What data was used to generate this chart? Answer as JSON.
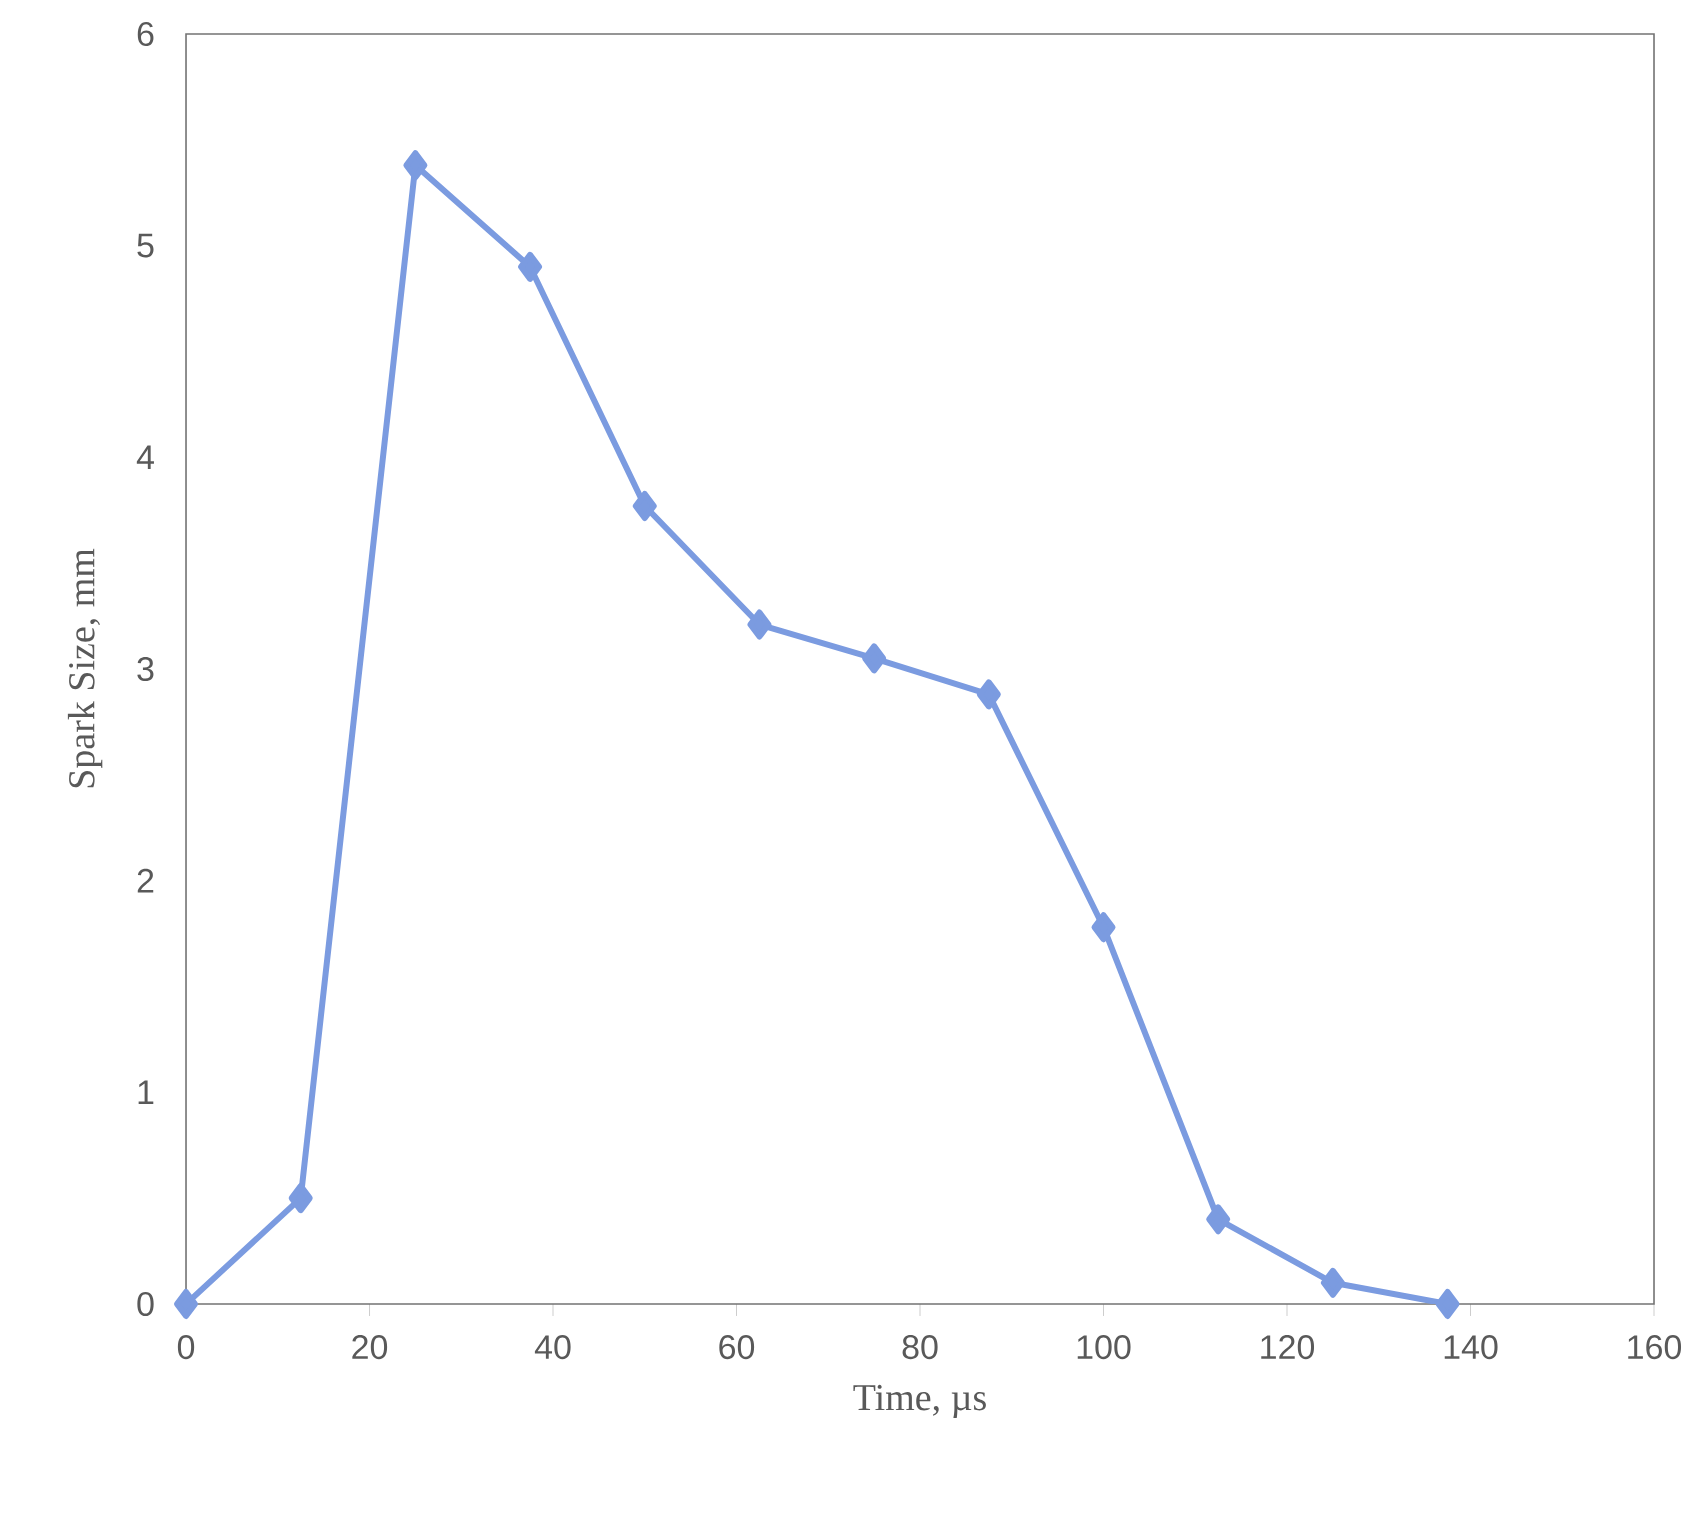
{
  "chart_data": {
    "type": "line",
    "xlabel": "Time, µs",
    "ylabel": "Spark Size, mm",
    "x": [
      0,
      12.5,
      25,
      37.5,
      50,
      62.5,
      75,
      87.5,
      100,
      112.5,
      125,
      137.5
    ],
    "series": [
      {
        "color": "#7b9be0",
        "values": [
          0,
          0.5,
          5.38,
          4.9,
          3.77,
          3.21,
          3.05,
          2.88,
          1.78,
          0.4,
          0.1,
          0
        ]
      }
    ],
    "xlim": [
      0,
      160
    ],
    "ylim": [
      0,
      6
    ],
    "xticks": [
      0,
      20,
      40,
      60,
      80,
      100,
      120,
      140,
      160
    ],
    "yticks": [
      0,
      1,
      2,
      3,
      4,
      5,
      6
    ],
    "grid": false,
    "marker": "diamond",
    "line_style": "solid"
  }
}
